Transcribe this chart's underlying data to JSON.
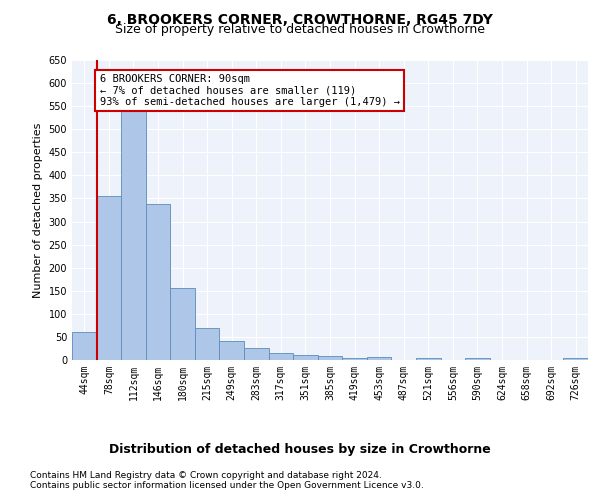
{
  "title": "6, BROOKERS CORNER, CROWTHORNE, RG45 7DY",
  "subtitle": "Size of property relative to detached houses in Crowthorne",
  "xlabel_bottom": "Distribution of detached houses by size in Crowthorne",
  "ylabel": "Number of detached properties",
  "footnote1": "Contains HM Land Registry data © Crown copyright and database right 2024.",
  "footnote2": "Contains public sector information licensed under the Open Government Licence v3.0.",
  "bin_labels": [
    "44sqm",
    "78sqm",
    "112sqm",
    "146sqm",
    "180sqm",
    "215sqm",
    "249sqm",
    "283sqm",
    "317sqm",
    "351sqm",
    "385sqm",
    "419sqm",
    "453sqm",
    "487sqm",
    "521sqm",
    "556sqm",
    "590sqm",
    "624sqm",
    "658sqm",
    "692sqm",
    "726sqm"
  ],
  "bar_values": [
    60,
    355,
    540,
    338,
    157,
    70,
    42,
    25,
    15,
    10,
    9,
    4,
    6,
    0,
    5,
    0,
    5,
    0,
    0,
    0,
    5
  ],
  "bar_color": "#aec6e8",
  "bar_edge_color": "#5b8db8",
  "property_line_color": "#cc0000",
  "property_line_x": 0.5,
  "annotation_text": "6 BROOKERS CORNER: 90sqm\n← 7% of detached houses are smaller (119)\n93% of semi-detached houses are larger (1,479) →",
  "annotation_box_color": "#ffffff",
  "annotation_box_edge": "#cc0000",
  "ylim": [
    0,
    650
  ],
  "yticks": [
    0,
    50,
    100,
    150,
    200,
    250,
    300,
    350,
    400,
    450,
    500,
    550,
    600,
    650
  ],
  "bg_color": "#eef2fa",
  "grid_color": "#ffffff",
  "title_fontsize": 10,
  "subtitle_fontsize": 9,
  "tick_fontsize": 7,
  "ylabel_fontsize": 8,
  "annotation_fontsize": 7.5,
  "footnote_fontsize": 6.5
}
